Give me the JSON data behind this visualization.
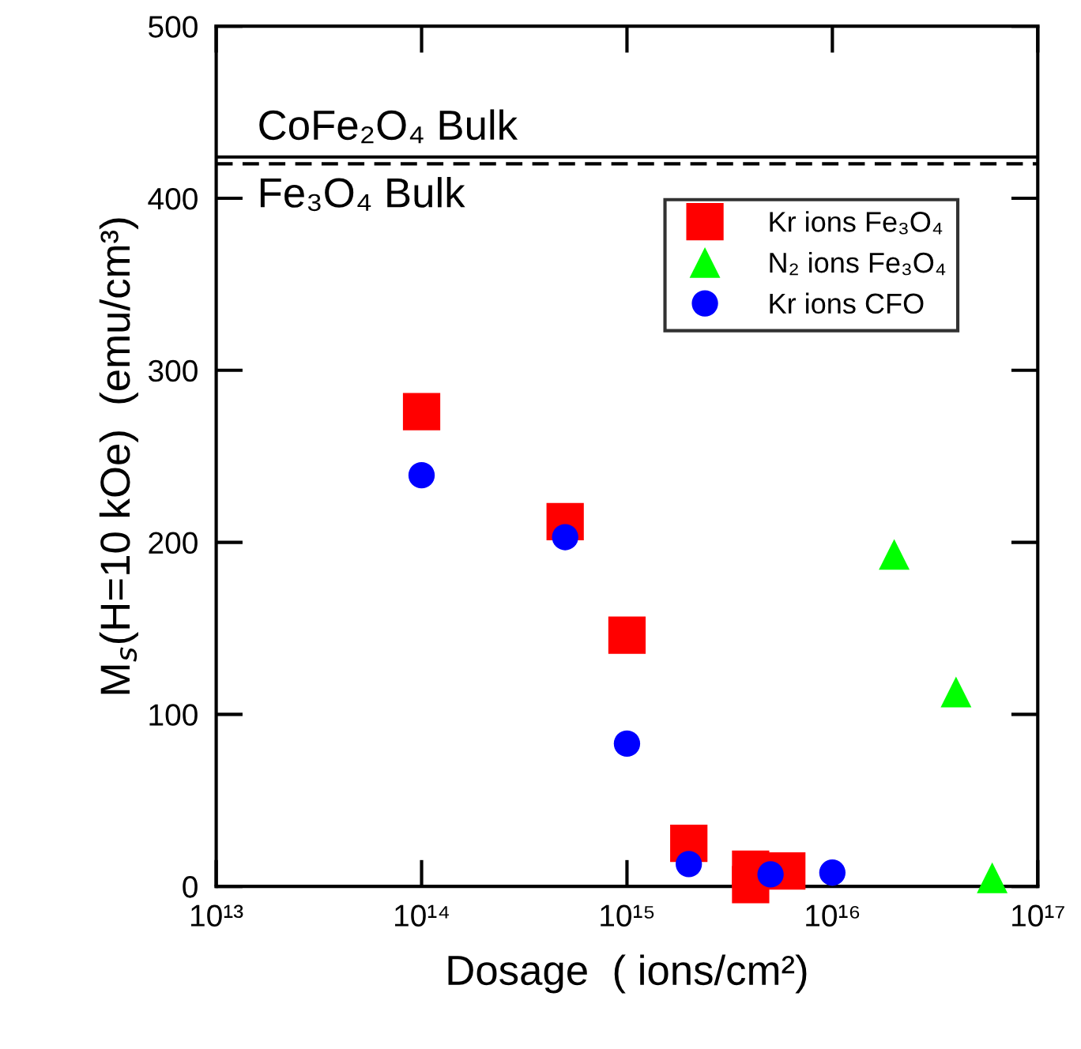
{
  "chart_data": {
    "type": "scatter",
    "xlabel": "Dosage  ( ions/cm²)",
    "ylabel": "M$_{s}$(H=10 kOe)  (emu/cm³)",
    "log": "x",
    "xlim": [
      10000000000000.0,
      1e+17
    ],
    "xticks": [
      {
        "value": 10000000000000.0,
        "label": "10¹³"
      },
      {
        "value": 100000000000000.0,
        "label": "10¹⁴"
      },
      {
        "value": 1000000000000000.0,
        "label": "10¹⁵"
      },
      {
        "value": 1e+16,
        "label": "10¹⁶"
      },
      {
        "value": 1e+17,
        "label": "10¹⁷"
      }
    ],
    "ylim": [
      0,
      500
    ],
    "yticks": [
      0,
      100,
      200,
      300,
      400,
      500
    ],
    "grid": false,
    "legend": "top right",
    "series": [
      {
        "name": "Kr ions Fe₃O₄",
        "color": "#ff0000",
        "marker": "square",
        "x": [
          100000000000000.0,
          500000000000000.0,
          1000000000000000.0,
          2000000000000000.0,
          4000000000000000.0,
          4000000000000000.0,
          6000000000000000.0
        ],
        "values": [
          276,
          212,
          146,
          25,
          10,
          1,
          9
        ]
      },
      {
        "name": "N₂ ions Fe₃O₄",
        "color": "#00ff00",
        "marker": "triangle",
        "x": [
          2e+16,
          4e+16,
          6e+16
        ],
        "values": [
          193,
          113,
          5
        ]
      },
      {
        "name": "Kr ions CFO",
        "color": "#0000ff",
        "marker": "circle",
        "x": [
          100000000000000.0,
          500000000000000.0,
          1000000000000000.0,
          2000000000000000.0,
          5000000000000000.0,
          1e+16
        ],
        "values": [
          239,
          203,
          83,
          13,
          7,
          8
        ]
      }
    ],
    "ref_lines": [
      {
        "axis": "y",
        "value": 424,
        "label": "CoFe₂O₄ Bulk",
        "color": "#000000",
        "line_style": "solid"
      },
      {
        "axis": "y",
        "value": 420,
        "label": "Fe₃O₄ Bulk",
        "color": "#000000",
        "line_style": "dashed"
      }
    ]
  }
}
